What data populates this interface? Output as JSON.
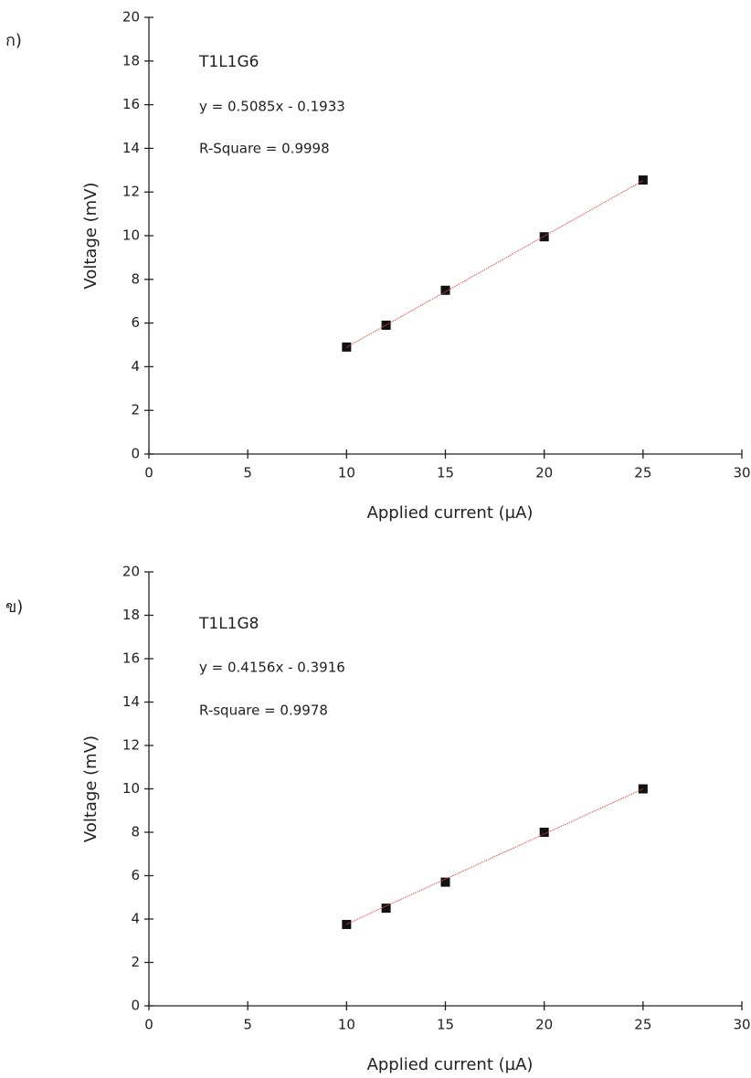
{
  "chart_data": [
    {
      "type": "scatter",
      "panel_label": "ก)",
      "annotations": [
        "T1L1G6",
        "y = 0.5085x - 0.1933",
        "R-Square = 0.9998"
      ],
      "x_label": "Applied current (µA)",
      "y_label": "Voltage (mV)",
      "x": [
        10,
        12,
        15,
        20,
        25
      ],
      "series": [
        {
          "color": "#111111",
          "values": [
            4.9,
            5.9,
            7.5,
            9.95,
            12.55
          ]
        },
        {
          "color": "#d9534f",
          "values": [
            4.89,
            5.91,
            7.43,
            9.98,
            12.52
          ],
          "line": true
        }
      ],
      "xlim": [
        0,
        30
      ],
      "xticks": [
        0,
        5,
        10,
        15,
        20,
        25,
        30
      ],
      "ylim": [
        0,
        20
      ],
      "yticks": [
        0,
        2,
        4,
        6,
        8,
        10,
        12,
        14,
        16,
        18,
        20
      ]
    },
    {
      "type": "scatter",
      "panel_label": "ข)",
      "annotations": [
        "T1L1G8",
        "y = 0.4156x - 0.3916",
        "R-square = 0.9978"
      ],
      "x_label": "Applied current (µA)",
      "y_label": "Voltage (mV)",
      "x": [
        10,
        12,
        15,
        20,
        25
      ],
      "series": [
        {
          "color": "#111111",
          "values": [
            3.75,
            4.5,
            5.7,
            8.0,
            10.0
          ]
        },
        {
          "color": "#d9534f",
          "values": [
            3.76,
            4.6,
            5.84,
            7.92,
            10.0
          ],
          "line": true
        }
      ],
      "xlim": [
        0,
        30
      ],
      "xticks": [
        0,
        5,
        10,
        15,
        20,
        25,
        30
      ],
      "ylim": [
        0,
        20
      ],
      "yticks": [
        0,
        2,
        4,
        6,
        8,
        10,
        12,
        14,
        16,
        18,
        20
      ]
    }
  ]
}
